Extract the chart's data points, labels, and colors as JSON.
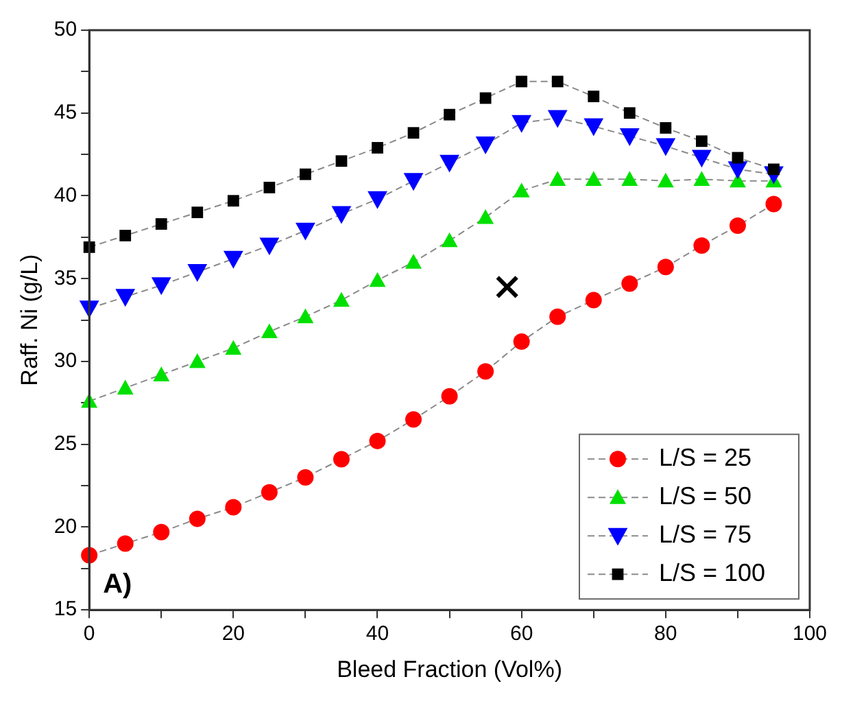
{
  "chart_data": {
    "type": "line",
    "xlabel": "Bleed Fraction (Vol%)",
    "ylabel": "Raff. Ni (g/L)",
    "annotations": [
      "A)"
    ],
    "x": [
      0,
      5,
      10,
      15,
      20,
      25,
      30,
      35,
      40,
      45,
      50,
      55,
      60,
      65,
      70,
      75,
      80,
      85,
      90,
      95
    ],
    "xlim": [
      0,
      100
    ],
    "xticks": [
      0,
      {
        "value": 10,
        "label": null
      },
      20,
      {
        "value": 30,
        "label": null
      },
      40,
      {
        "value": 50,
        "label": null
      },
      60,
      {
        "value": 70,
        "label": null
      },
      80,
      {
        "value": 90,
        "label": null
      },
      100
    ],
    "ylim": [
      15,
      50
    ],
    "yticks": [
      15,
      {
        "value": 17.5,
        "label": null
      },
      20,
      {
        "value": 22.5,
        "label": null
      },
      25,
      {
        "value": 27.5,
        "label": null
      },
      30,
      {
        "value": 32.5,
        "label": null
      },
      35,
      {
        "value": 37.5,
        "label": null
      },
      40,
      {
        "value": 42.5,
        "label": null
      },
      45,
      {
        "value": 47.5,
        "label": null
      },
      50
    ],
    "grid": false,
    "legend": "bottom right",
    "line_style": "dashed",
    "series": [
      {
        "name": "L/S = 25",
        "color": "#ff0000",
        "marker": "circle",
        "values": [
          18.3,
          19.0,
          19.7,
          20.5,
          21.2,
          22.1,
          23.0,
          24.1,
          25.2,
          26.5,
          27.9,
          29.4,
          31.2,
          32.7,
          33.7,
          34.7,
          35.7,
          37.0,
          38.2,
          39.5
        ]
      },
      {
        "name": "L/S = 50",
        "color": "#00e000",
        "marker": "triangle",
        "values": [
          27.6,
          28.4,
          29.2,
          30.0,
          30.8,
          31.8,
          32.7,
          33.7,
          34.9,
          36.0,
          37.3,
          38.7,
          40.3,
          41.0,
          41.0,
          41.0,
          40.9,
          41.0,
          40.9,
          40.9
        ]
      },
      {
        "name": "L/S = 75",
        "color": "#0000ff",
        "marker": "triangle-down",
        "values": [
          33.2,
          33.9,
          34.6,
          35.4,
          36.2,
          37.0,
          37.9,
          38.9,
          39.8,
          40.9,
          42.0,
          43.1,
          44.4,
          44.7,
          44.2,
          43.6,
          43.0,
          42.3,
          41.6,
          41.3
        ]
      },
      {
        "name": "L/S = 100",
        "color": "#000000",
        "marker": "square",
        "values": [
          36.9,
          37.6,
          38.3,
          39.0,
          39.7,
          40.5,
          41.3,
          42.1,
          42.9,
          43.8,
          44.9,
          45.9,
          46.9,
          46.9,
          46.0,
          45.0,
          44.1,
          43.3,
          42.3,
          41.6
        ]
      },
      {
        "type": "scatter",
        "color": "#000000",
        "marker": "cross",
        "x": [
          58
        ],
        "values": [
          34.5
        ]
      }
    ]
  }
}
